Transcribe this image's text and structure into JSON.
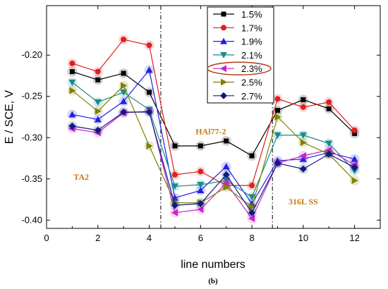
{
  "chart_data": {
    "type": "line",
    "xlabel": "line numbers",
    "ylabel": "E / SCE, V",
    "caption": "(b)",
    "xlim": [
      0,
      13
    ],
    "ylim": [
      -0.41,
      -0.14
    ],
    "xticks": [
      0,
      2,
      4,
      6,
      8,
      10,
      12
    ],
    "yticks": [
      -0.4,
      -0.35,
      -0.3,
      -0.25,
      -0.2
    ],
    "ytick_labels": [
      "-0.40",
      "-0.35",
      "-0.30",
      "-0.25",
      "-0.20"
    ],
    "x": [
      1,
      2,
      3,
      4,
      5,
      6,
      7,
      8,
      9,
      10,
      11,
      12
    ],
    "series": [
      {
        "name": "1.5%",
        "color": "#000000",
        "marker": "square",
        "values": [
          -0.22,
          -0.23,
          -0.222,
          -0.245,
          -0.31,
          -0.31,
          -0.304,
          -0.322,
          -0.267,
          -0.254,
          -0.265,
          -0.295
        ]
      },
      {
        "name": "1.7%",
        "color": "#e01f1f",
        "marker": "circle",
        "values": [
          -0.21,
          -0.22,
          -0.181,
          -0.188,
          -0.345,
          -0.341,
          -0.358,
          -0.358,
          -0.253,
          -0.263,
          -0.257,
          -0.291
        ]
      },
      {
        "name": "1.9%",
        "color": "#1f1fe6",
        "marker": "triangle-up",
        "values": [
          -0.272,
          -0.278,
          -0.256,
          -0.218,
          -0.373,
          -0.364,
          -0.335,
          -0.38,
          -0.328,
          -0.326,
          -0.318,
          -0.326
        ]
      },
      {
        "name": "2.1%",
        "color": "#1a8a8a",
        "marker": "triangle-down",
        "values": [
          -0.233,
          -0.257,
          -0.245,
          -0.266,
          -0.359,
          -0.357,
          -0.352,
          -0.372,
          -0.297,
          -0.297,
          -0.307,
          -0.34
        ]
      },
      {
        "name": "2.3%",
        "color": "#cc22cc",
        "marker": "triangle-left",
        "values": [
          -0.289,
          -0.294,
          -0.27,
          -0.268,
          -0.391,
          -0.387,
          -0.355,
          -0.398,
          -0.331,
          -0.322,
          -0.315,
          -0.333
        ]
      },
      {
        "name": "2.5%",
        "color": "#808000",
        "marker": "triangle-right",
        "values": [
          -0.243,
          -0.268,
          -0.237,
          -0.31,
          -0.379,
          -0.379,
          -0.36,
          -0.384,
          -0.275,
          -0.306,
          -0.32,
          -0.352
        ]
      },
      {
        "name": "2.7%",
        "color": "#0f1a80",
        "marker": "diamond",
        "values": [
          -0.286,
          -0.291,
          -0.269,
          -0.269,
          -0.382,
          -0.38,
          -0.345,
          -0.391,
          -0.331,
          -0.338,
          -0.32,
          -0.336
        ]
      }
    ],
    "dividers_x": [
      4.45,
      8.8
    ],
    "annotations": [
      {
        "text": "TA2",
        "x": 1.35,
        "y": -0.351
      },
      {
        "text": "HAl77-2",
        "x": 6.4,
        "y": -0.296
      },
      {
        "text": "316L SS",
        "x": 10.0,
        "y": -0.381
      }
    ],
    "legend_position": "top-center",
    "highlighted_legend_entry": "2.3%",
    "highlight_color": "#b33a1a"
  }
}
